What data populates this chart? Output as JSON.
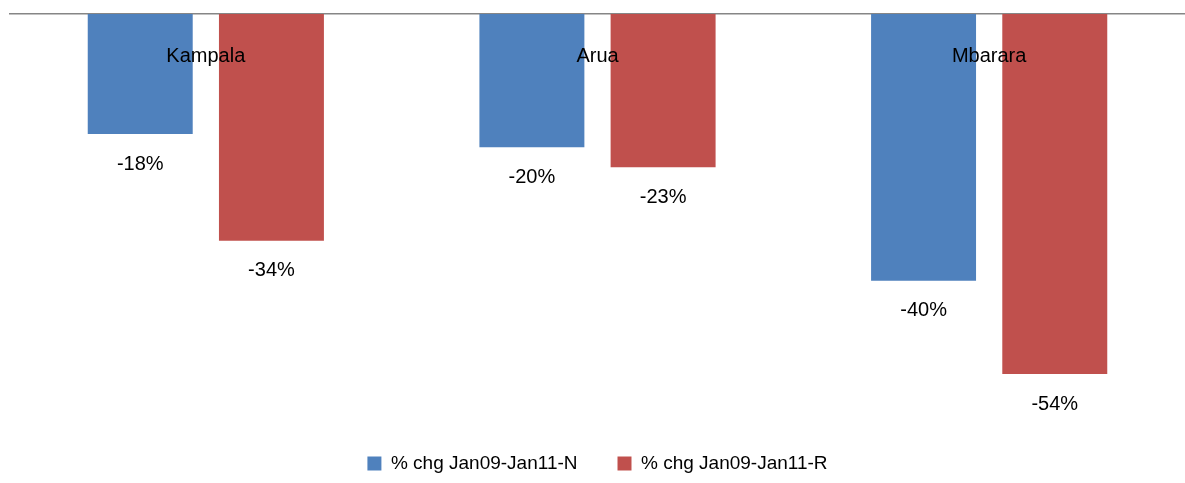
{
  "chart_data": {
    "type": "bar",
    "categories": [
      "Kampala",
      "Arua",
      "Mbarara"
    ],
    "series": [
      {
        "name": "% chg Jan09-Jan11-N",
        "color": "#4f81bd",
        "values": [
          -18,
          -20,
          -40
        ],
        "value_labels": [
          "-18%",
          "-20%",
          "-40%"
        ]
      },
      {
        "name": "% chg Jan09-Jan11-R",
        "color": "#c0504d",
        "values": [
          -34,
          -23,
          -54
        ],
        "value_labels": [
          "-34%",
          "-23%",
          "-54%"
        ]
      }
    ],
    "legend": "bottom",
    "grid": false
  }
}
